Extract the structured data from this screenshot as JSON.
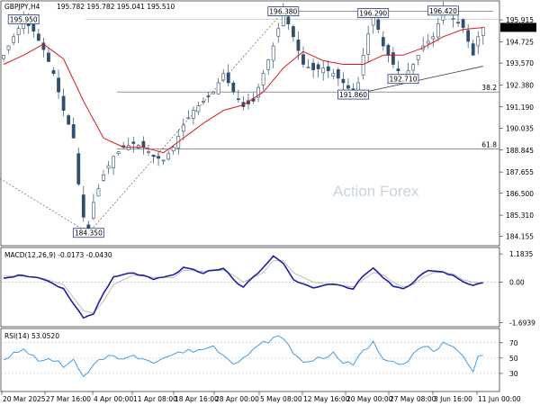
{
  "colors": {
    "candle": "#2f4f6f",
    "ma": "#e0151e",
    "macd": "#1e1ea8",
    "signal": "#b0b0b0",
    "rsi": "#2e93e6",
    "box_border": "#1e3a8a",
    "grid": "#888888"
  },
  "chart_data": [
    {
      "type": "candlestick",
      "title": "GBPJPY,H4",
      "ohlc_header": "195.782 195.782 195.041 195.510",
      "current_price": 195.51,
      "ylim": [
        183.8,
        196.8
      ],
      "y_ticks": [
        195.915,
        194.725,
        193.57,
        192.38,
        191.19,
        190.035,
        188.845,
        187.655,
        186.5,
        185.31,
        184.155
      ],
      "x_ticks": [
        "20 Mar 2025",
        "27 Mar 16:00",
        "4 Apr 00:00",
        "11 Apr 08:00",
        "18 Apr 16:00",
        "28 Apr 00:00",
        "5 May 08:00",
        "12 May 16:00",
        "20 May 00:00",
        "27 May 08:00",
        "3 Jun 16:00",
        "11 Jun 00:00"
      ],
      "close_path": [
        [
          0,
          194.0
        ],
        [
          2,
          195.0
        ],
        [
          4,
          195.9
        ],
        [
          6,
          195.3
        ],
        [
          8,
          194.3
        ],
        [
          10,
          193.0
        ],
        [
          12,
          191.0
        ],
        [
          14,
          189.5
        ],
        [
          15,
          187.0
        ],
        [
          16,
          185.2
        ],
        [
          17,
          184.35
        ],
        [
          18,
          186.0
        ],
        [
          20,
          187.5
        ],
        [
          22,
          188.5
        ],
        [
          24,
          189.0
        ],
        [
          26,
          189.2
        ],
        [
          28,
          189.0
        ],
        [
          30,
          188.5
        ],
        [
          32,
          188.3
        ],
        [
          34,
          189.0
        ],
        [
          36,
          190.2
        ],
        [
          38,
          191.0
        ],
        [
          40,
          191.5
        ],
        [
          42,
          192.0
        ],
        [
          44,
          193.0
        ],
        [
          46,
          192.0
        ],
        [
          48,
          191.2
        ],
        [
          50,
          191.5
        ],
        [
          52,
          193.0
        ],
        [
          54,
          194.5
        ],
        [
          56,
          196.38
        ],
        [
          58,
          195.0
        ],
        [
          60,
          193.5
        ],
        [
          62,
          193.2
        ],
        [
          64,
          193.3
        ],
        [
          66,
          193.0
        ],
        [
          68,
          192.5
        ],
        [
          70,
          191.9
        ],
        [
          71,
          192.5
        ],
        [
          72,
          194.0
        ],
        [
          74,
          196.29
        ],
        [
          76,
          194.5
        ],
        [
          78,
          193.5
        ],
        [
          80,
          192.8
        ],
        [
          82,
          193.5
        ],
        [
          84,
          194.5
        ],
        [
          86,
          195.0
        ],
        [
          88,
          196.42
        ],
        [
          90,
          196.0
        ],
        [
          92,
          195.5
        ],
        [
          94,
          194.0
        ],
        [
          95,
          195.0
        ],
        [
          96,
          195.51
        ]
      ],
      "ma_path": [
        [
          0,
          193.5
        ],
        [
          4,
          194.0
        ],
        [
          8,
          194.6
        ],
        [
          12,
          193.8
        ],
        [
          16,
          191.5
        ],
        [
          20,
          189.5
        ],
        [
          24,
          189.0
        ],
        [
          28,
          189.0
        ],
        [
          32,
          188.7
        ],
        [
          36,
          189.5
        ],
        [
          40,
          190.3
        ],
        [
          44,
          191.0
        ],
        [
          48,
          191.3
        ],
        [
          52,
          192.0
        ],
        [
          56,
          193.3
        ],
        [
          60,
          194.2
        ],
        [
          64,
          193.7
        ],
        [
          68,
          193.5
        ],
        [
          72,
          193.5
        ],
        [
          76,
          194.0
        ],
        [
          80,
          194.0
        ],
        [
          84,
          194.4
        ],
        [
          88,
          195.0
        ],
        [
          92,
          195.4
        ],
        [
          96,
          195.5
        ]
      ],
      "levels": [
        {
          "label": "38.2",
          "value": 192.0
        },
        {
          "label": "61.8",
          "value": 188.9
        }
      ],
      "price_labels": [
        {
          "text": "195.950",
          "x": 4,
          "y": 195.95
        },
        {
          "text": "184.350",
          "x": 17,
          "y": 184.35
        },
        {
          "text": "196.380",
          "x": 56,
          "y": 196.38
        },
        {
          "text": "191.860",
          "x": 70,
          "y": 191.86
        },
        {
          "text": "196.290",
          "x": 74,
          "y": 196.29
        },
        {
          "text": "192.710",
          "x": 80,
          "y": 192.71
        },
        {
          "text": "196.420",
          "x": 88,
          "y": 196.42
        }
      ],
      "watermark": "Action Forex"
    },
    {
      "type": "line",
      "title": "MACD(12,26,9) -0.0173 -0.0430",
      "ylim": [
        -1.75,
        1.3
      ],
      "y_ticks": [
        1.1835,
        0.0,
        -1.6939
      ],
      "macd_path": [
        [
          0,
          0.2
        ],
        [
          4,
          0.3
        ],
        [
          8,
          0.1
        ],
        [
          12,
          -0.3
        ],
        [
          16,
          -1.5
        ],
        [
          18,
          -1.3
        ],
        [
          20,
          -0.5
        ],
        [
          22,
          0.2
        ],
        [
          26,
          0.4
        ],
        [
          30,
          0.1
        ],
        [
          34,
          0.3
        ],
        [
          36,
          0.6
        ],
        [
          40,
          0.4
        ],
        [
          44,
          0.6
        ],
        [
          46,
          0.1
        ],
        [
          48,
          -0.2
        ],
        [
          52,
          0.6
        ],
        [
          54,
          1.1
        ],
        [
          56,
          0.8
        ],
        [
          58,
          0.1
        ],
        [
          62,
          -0.2
        ],
        [
          66,
          -0.1
        ],
        [
          70,
          -0.3
        ],
        [
          72,
          0.3
        ],
        [
          74,
          0.6
        ],
        [
          76,
          0.2
        ],
        [
          78,
          -0.2
        ],
        [
          80,
          -0.3
        ],
        [
          82,
          0.0
        ],
        [
          84,
          0.4
        ],
        [
          86,
          0.5
        ],
        [
          88,
          0.4
        ],
        [
          90,
          0.3
        ],
        [
          92,
          0.0
        ],
        [
          94,
          -0.1
        ],
        [
          96,
          -0.02
        ]
      ],
      "signal_path": [
        [
          0,
          0.25
        ],
        [
          4,
          0.25
        ],
        [
          8,
          0.15
        ],
        [
          12,
          -0.1
        ],
        [
          16,
          -1.2
        ],
        [
          18,
          -1.3
        ],
        [
          20,
          -0.8
        ],
        [
          22,
          -0.1
        ],
        [
          26,
          0.3
        ],
        [
          30,
          0.2
        ],
        [
          34,
          0.2
        ],
        [
          36,
          0.5
        ],
        [
          40,
          0.45
        ],
        [
          44,
          0.5
        ],
        [
          46,
          0.3
        ],
        [
          48,
          0.0
        ],
        [
          52,
          0.4
        ],
        [
          54,
          0.9
        ],
        [
          56,
          0.9
        ],
        [
          58,
          0.4
        ],
        [
          62,
          0.0
        ],
        [
          66,
          -0.1
        ],
        [
          70,
          -0.2
        ],
        [
          72,
          0.1
        ],
        [
          74,
          0.4
        ],
        [
          76,
          0.3
        ],
        [
          78,
          0.0
        ],
        [
          80,
          -0.2
        ],
        [
          82,
          -0.1
        ],
        [
          84,
          0.2
        ],
        [
          86,
          0.4
        ],
        [
          88,
          0.4
        ],
        [
          90,
          0.35
        ],
        [
          92,
          0.1
        ],
        [
          94,
          0.0
        ],
        [
          96,
          -0.04
        ]
      ]
    },
    {
      "type": "line",
      "title": "RSI(14) 53.0520",
      "ylim": [
        10,
        85
      ],
      "y_ticks": [
        70,
        50,
        30
      ],
      "rsi_path": [
        [
          0,
          50
        ],
        [
          2,
          55
        ],
        [
          4,
          60
        ],
        [
          6,
          52
        ],
        [
          8,
          45
        ],
        [
          10,
          48
        ],
        [
          12,
          40
        ],
        [
          14,
          46
        ],
        [
          16,
          25
        ],
        [
          17,
          30
        ],
        [
          18,
          40
        ],
        [
          20,
          50
        ],
        [
          22,
          55
        ],
        [
          24,
          48
        ],
        [
          26,
          52
        ],
        [
          28,
          50
        ],
        [
          30,
          46
        ],
        [
          32,
          50
        ],
        [
          34,
          55
        ],
        [
          36,
          58
        ],
        [
          38,
          60
        ],
        [
          40,
          62
        ],
        [
          42,
          65
        ],
        [
          44,
          55
        ],
        [
          46,
          45
        ],
        [
          48,
          50
        ],
        [
          50,
          60
        ],
        [
          52,
          70
        ],
        [
          54,
          75
        ],
        [
          56,
          78
        ],
        [
          58,
          55
        ],
        [
          60,
          45
        ],
        [
          62,
          48
        ],
        [
          64,
          52
        ],
        [
          66,
          55
        ],
        [
          68,
          45
        ],
        [
          70,
          40
        ],
        [
          72,
          60
        ],
        [
          74,
          70
        ],
        [
          76,
          50
        ],
        [
          78,
          48
        ],
        [
          80,
          42
        ],
        [
          82,
          55
        ],
        [
          84,
          65
        ],
        [
          86,
          60
        ],
        [
          88,
          68
        ],
        [
          90,
          62
        ],
        [
          92,
          50
        ],
        [
          94,
          35
        ],
        [
          95,
          55
        ],
        [
          96,
          53
        ]
      ]
    }
  ]
}
